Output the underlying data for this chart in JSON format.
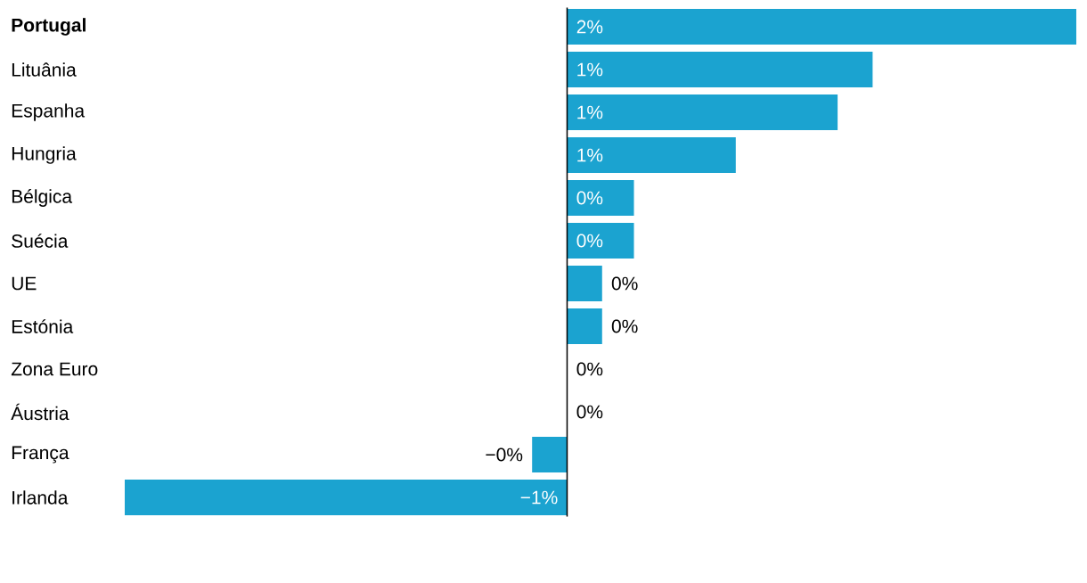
{
  "chart_data": {
    "type": "bar",
    "orientation": "horizontal",
    "color": "#1ba3d0",
    "categories": [
      "**Portugal**",
      "Lituânia",
      "Espanha",
      "Hungria",
      "Bélgica",
      "Suécia",
      "UE",
      "Estónia",
      "Zona Euro",
      "Áustria",
      "França",
      "Irlanda"
    ],
    "values": [
      1.6,
      0.96,
      0.85,
      0.53,
      0.21,
      0.21,
      0.11,
      0.11,
      0,
      0,
      -0.11,
      -1.39
    ],
    "value_labels": [
      "2%",
      "1%",
      "1%",
      "1%",
      "0%",
      "0%",
      "0%",
      "0%",
      "0%",
      "0%",
      "−0%",
      "−1%"
    ]
  }
}
